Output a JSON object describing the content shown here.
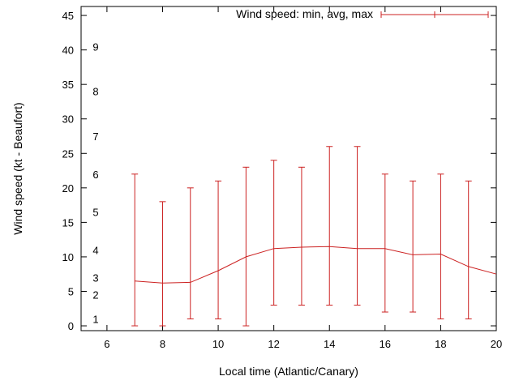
{
  "chart_data": {
    "type": "line",
    "title": "",
    "xlabel": "Local time (Atlantic/Canary)",
    "ylabel": "Wind speed (kt - Beaufort)",
    "legend": {
      "label": "Wind speed: min, avg, max",
      "position": "top-right"
    },
    "color": "#cc2222",
    "grid": false,
    "xlim": [
      5.07,
      20
    ],
    "ylim": [
      -0.7,
      46.3
    ],
    "xticks": [
      6,
      8,
      10,
      12,
      14,
      16,
      18,
      20
    ],
    "yticks": [
      0,
      5,
      10,
      15,
      20,
      25,
      30,
      35,
      40,
      45
    ],
    "beaufort_scale": [
      {
        "label": "1",
        "kt": 1
      },
      {
        "label": "2",
        "kt": 4.5
      },
      {
        "label": "3",
        "kt": 7
      },
      {
        "label": "4",
        "kt": 11
      },
      {
        "label": "5",
        "kt": 16.5
      },
      {
        "label": "6",
        "kt": 22
      },
      {
        "label": "7",
        "kt": 27.5
      },
      {
        "label": "8",
        "kt": 34
      },
      {
        "label": "9",
        "kt": 40.5
      }
    ],
    "points": [
      {
        "x": 7,
        "min": 0,
        "avg": 6.5,
        "max": 22
      },
      {
        "x": 8,
        "min": 0,
        "avg": 6.2,
        "max": 18
      },
      {
        "x": 9,
        "min": 1,
        "avg": 6.3,
        "max": 20
      },
      {
        "x": 10,
        "min": 1,
        "avg": 8.0,
        "max": 21
      },
      {
        "x": 11,
        "min": 0,
        "avg": 10.0,
        "max": 23
      },
      {
        "x": 12,
        "min": 3,
        "avg": 11.2,
        "max": 24
      },
      {
        "x": 13,
        "min": 3,
        "avg": 11.4,
        "max": 23
      },
      {
        "x": 14,
        "min": 3,
        "avg": 11.5,
        "max": 26
      },
      {
        "x": 15,
        "min": 3,
        "avg": 11.2,
        "max": 26
      },
      {
        "x": 16,
        "min": 2,
        "avg": 11.2,
        "max": 22
      },
      {
        "x": 17,
        "min": 2,
        "avg": 10.3,
        "max": 21
      },
      {
        "x": 18,
        "min": 1,
        "avg": 10.4,
        "max": 22
      },
      {
        "x": 19,
        "min": 1,
        "avg": 8.6,
        "max": 21
      },
      {
        "x": 20,
        "min": null,
        "avg": 7.5,
        "max": null
      }
    ]
  }
}
